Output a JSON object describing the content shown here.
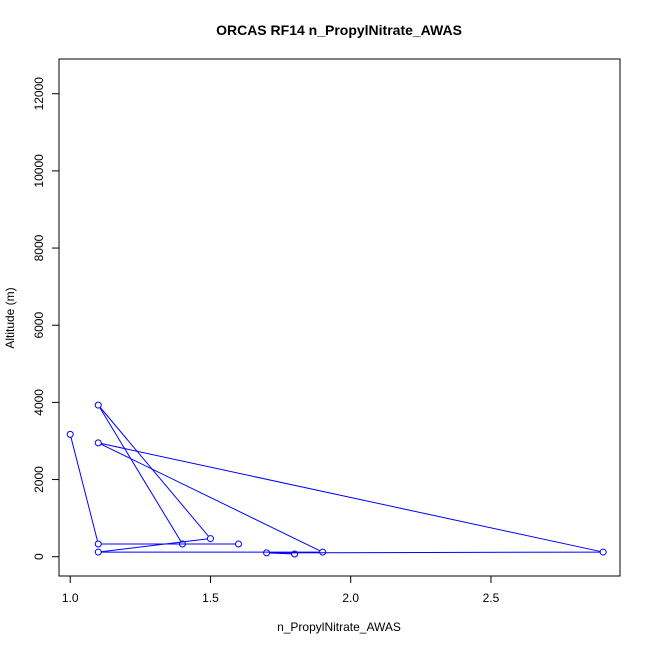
{
  "chart_data": {
    "type": "line",
    "title": "ORCAS RF14 n_PropylNitrate_AWAS",
    "xlabel": "n_PropylNitrate_AWAS",
    "ylabel": "Altitude (m)",
    "xlim": [
      0.96,
      2.96
    ],
    "ylim": [
      -500,
      12900
    ],
    "xticks": [
      1.0,
      1.5,
      2.0,
      2.5
    ],
    "xtick_labels": [
      "1.0",
      "1.5",
      "2.0",
      "2.5"
    ],
    "yticks": [
      0,
      2000,
      4000,
      6000,
      8000,
      10000,
      12000
    ],
    "ytick_labels": [
      "0",
      "2000",
      "4000",
      "6000",
      "8000",
      "10000",
      "12000"
    ],
    "grid": false,
    "series_color": "#0000ff",
    "points": [
      {
        "x": 1.0,
        "y": 3170
      },
      {
        "x": 1.1,
        "y": 330
      },
      {
        "x": 1.6,
        "y": 330
      },
      {
        "x": 1.4,
        "y": 330
      },
      {
        "x": 1.1,
        "y": 3930
      },
      {
        "x": 1.5,
        "y": 470
      },
      {
        "x": 1.1,
        "y": 120
      },
      {
        "x": 1.9,
        "y": 120
      },
      {
        "x": 1.1,
        "y": 2950
      },
      {
        "x": 2.9,
        "y": 120
      },
      {
        "x": 1.7,
        "y": 100
      },
      {
        "x": 1.8,
        "y": 70
      }
    ]
  }
}
